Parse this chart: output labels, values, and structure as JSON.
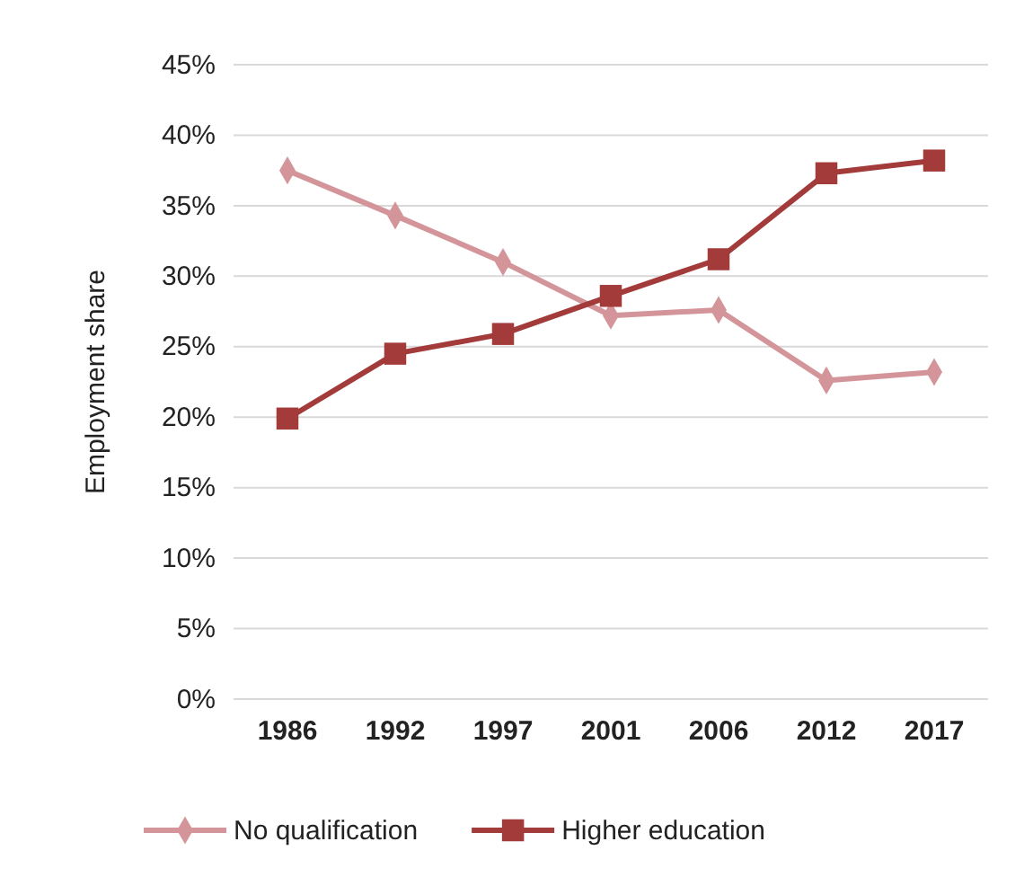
{
  "chart_data": {
    "type": "line",
    "ylabel": "Employment share",
    "categories": [
      "1986",
      "1992",
      "1997",
      "2001",
      "2006",
      "2012",
      "2017"
    ],
    "series": [
      {
        "name": "No qualification",
        "color": "#d4959a",
        "marker": "diamond",
        "values": [
          37.5,
          34.3,
          31.0,
          27.2,
          27.6,
          22.6,
          23.2
        ]
      },
      {
        "name": "Higher education",
        "color": "#a33b3b",
        "marker": "square",
        "values": [
          19.9,
          24.5,
          25.9,
          28.6,
          31.2,
          37.3,
          38.2
        ]
      }
    ],
    "ylim": [
      0,
      45
    ],
    "yticks": [
      {
        "value": 0,
        "label": "0%"
      },
      {
        "value": 5,
        "label": "5%"
      },
      {
        "value": 10,
        "label": "10%"
      },
      {
        "value": 15,
        "label": "15%"
      },
      {
        "value": 20,
        "label": "20%"
      },
      {
        "value": 25,
        "label": "25%"
      },
      {
        "value": 30,
        "label": "30%"
      },
      {
        "value": 35,
        "label": "35%"
      },
      {
        "value": 40,
        "label": "40%"
      },
      {
        "value": 45,
        "label": "45%"
      }
    ],
    "grid": "y",
    "legend": "bottom",
    "line_style": "solid"
  }
}
